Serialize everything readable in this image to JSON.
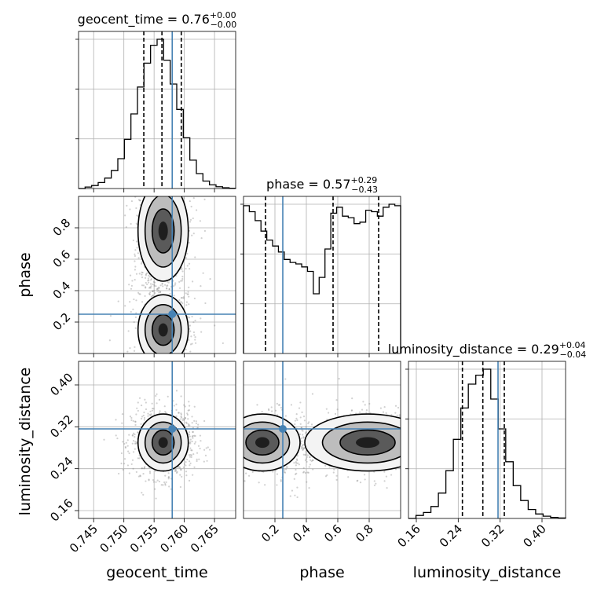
{
  "chart_data": {
    "type": "corner",
    "grid": true,
    "truth_color": "#4682b4",
    "parameters": [
      {
        "name": "geocent_time",
        "axis_label": "geocent_time",
        "title": {
          "base": "geocent_time = 0.76",
          "sup": "+0.00",
          "sub": "−0.00"
        },
        "range": [
          0.7425,
          0.7685
        ],
        "ticks": [
          0.745,
          0.75,
          0.755,
          0.76,
          0.765
        ],
        "tick_labels": [
          "0.745",
          "0.750",
          "0.755",
          "0.760",
          "0.765"
        ],
        "truth": 0.758,
        "quantiles": [
          0.7533,
          0.7563,
          0.7595
        ],
        "hist": [
          0.0,
          0.01,
          0.02,
          0.04,
          0.07,
          0.12,
          0.2,
          0.33,
          0.5,
          0.68,
          0.84,
          0.96,
          1.0,
          0.86,
          0.7,
          0.53,
          0.34,
          0.19,
          0.1,
          0.05,
          0.025,
          0.012,
          0.005,
          0.002
        ]
      },
      {
        "name": "phase",
        "axis_label": "phase",
        "title": {
          "base": "phase = 0.57",
          "sup": "+0.29",
          "sub": "−0.43"
        },
        "range": [
          0.0,
          1.0
        ],
        "ticks": [
          0.2,
          0.4,
          0.6,
          0.8
        ],
        "tick_labels": [
          "0.2",
          "0.4",
          "0.6",
          "0.8"
        ],
        "truth": 0.25,
        "quantiles": [
          0.14,
          0.57,
          0.86
        ],
        "hist": [
          0.99,
          0.95,
          0.89,
          0.82,
          0.76,
          0.72,
          0.68,
          0.63,
          0.61,
          0.6,
          0.58,
          0.55,
          0.4,
          0.51,
          0.7,
          0.94,
          0.98,
          0.92,
          0.91,
          0.87,
          0.88,
          0.96,
          0.95,
          0.92,
          0.98,
          1.0,
          0.99
        ]
      },
      {
        "name": "luminosity_distance",
        "axis_label": "luminosity_distance",
        "title": {
          "base": "luminosity_distance = 0.29",
          "sup": "+0.04",
          "sub": "−0.04"
        },
        "range": [
          0.145,
          0.445
        ],
        "ticks": [
          0.16,
          0.24,
          0.32,
          0.4
        ],
        "tick_labels": [
          "0.16",
          "0.24",
          "0.32",
          "0.40"
        ],
        "truth": 0.316,
        "quantiles": [
          0.248,
          0.287,
          0.328
        ],
        "hist": [
          0.0,
          0.02,
          0.04,
          0.08,
          0.17,
          0.32,
          0.53,
          0.74,
          0.9,
          0.96,
          1.0,
          0.8,
          0.6,
          0.38,
          0.22,
          0.12,
          0.06,
          0.03,
          0.015,
          0.007,
          0.003
        ]
      }
    ],
    "pairs": [
      {
        "x": 0,
        "y": 1,
        "mean": [
          0.7565,
          0.5
        ],
        "truth_point": [
          0.758,
          0.25
        ]
      },
      {
        "x": 0,
        "y": 2,
        "mean": [
          0.7565,
          0.29
        ],
        "truth_point": [
          0.758,
          0.316
        ]
      },
      {
        "x": 1,
        "y": 2,
        "mean": [
          0.5,
          0.29
        ],
        "truth_point": [
          0.25,
          0.316
        ]
      }
    ]
  }
}
